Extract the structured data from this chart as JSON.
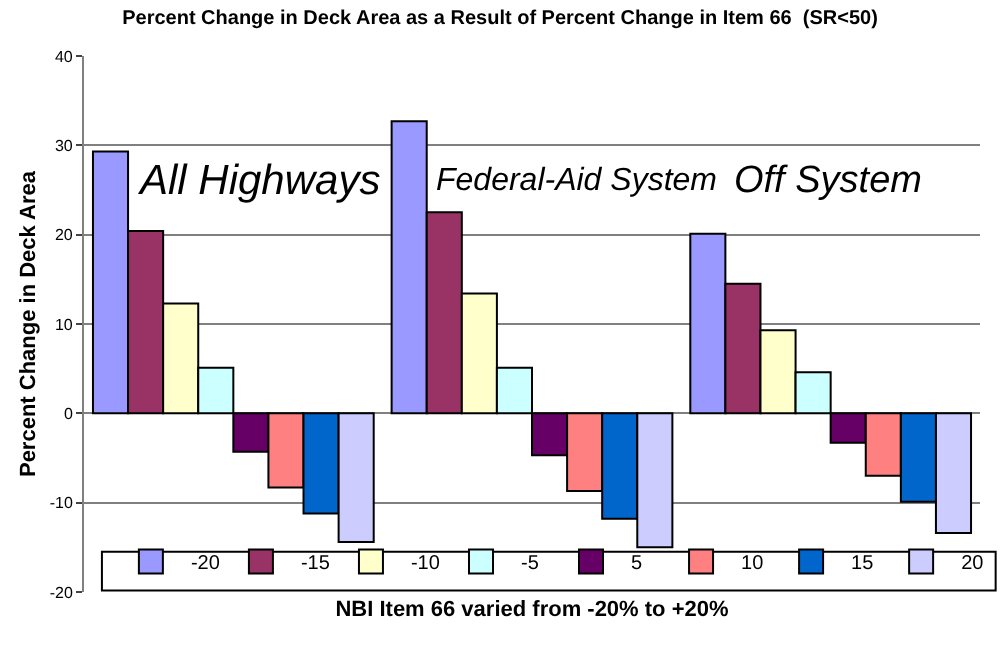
{
  "chart_data": {
    "type": "bar",
    "title": "Percent Change in Deck Area as a Result of Percent Change in Item 66  (SR<50)",
    "xlabel": "NBI Item 66 varied from -20% to +20%",
    "ylabel": "Percent Change in Deck Area",
    "categories": [
      null,
      null,
      null
    ],
    "series": [
      {
        "name": "-20",
        "color": "#9999ff",
        "values": [
          29.3,
          32.7,
          20.1
        ]
      },
      {
        "name": "-15",
        "color": "#993366",
        "values": [
          20.4,
          22.5,
          14.5
        ]
      },
      {
        "name": "-10",
        "color": "#ffffcc",
        "values": [
          12.3,
          13.4,
          9.3
        ]
      },
      {
        "name": "-5",
        "color": "#ccffff",
        "values": [
          5.1,
          5.1,
          4.6
        ]
      },
      {
        "name": "5",
        "color": "#660066",
        "values": [
          -4.3,
          -4.7,
          -3.3
        ]
      },
      {
        "name": "10",
        "color": "#ff8080",
        "values": [
          -8.3,
          -8.7,
          -7.0
        ]
      },
      {
        "name": "15",
        "color": "#0066cc",
        "values": [
          -11.2,
          -11.8,
          -9.9
        ]
      },
      {
        "name": "20",
        "color": "#ccccff",
        "values": [
          -14.4,
          -15.0,
          -13.4
        ]
      }
    ],
    "annotations": [
      "All Highways",
      "Federal-Aid System",
      "Off System"
    ],
    "ylim": [
      -20,
      40
    ],
    "yticks": [
      -20,
      -10,
      0,
      10,
      20,
      30,
      40
    ],
    "grid": "y",
    "legend": "bottom",
    "tick_labels": "y"
  }
}
